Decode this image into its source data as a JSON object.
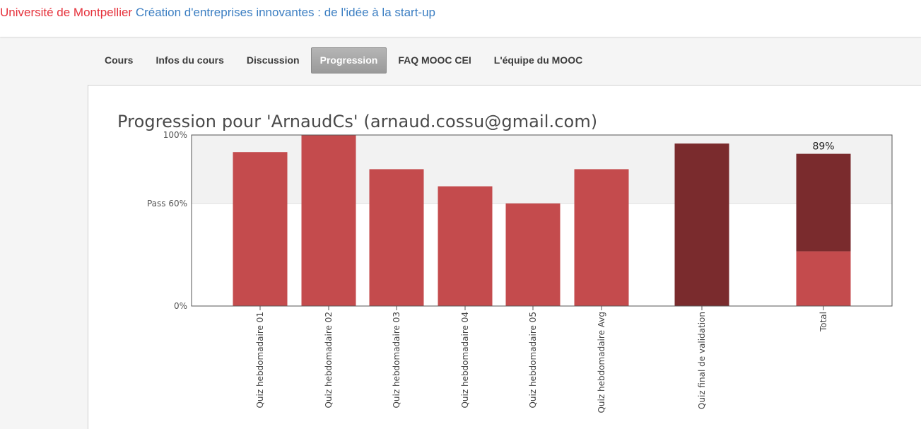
{
  "header": {
    "org": "Université de Montpellier",
    "course": "Création d'entreprises innovantes : de l'idée à la start-up"
  },
  "tabs": [
    {
      "label": "Cours",
      "active": false
    },
    {
      "label": "Infos du cours",
      "active": false
    },
    {
      "label": "Discussion",
      "active": false
    },
    {
      "label": "Progression",
      "active": true
    },
    {
      "label": "FAQ MOOC CEI",
      "active": false
    },
    {
      "label": "L'équipe du MOOC",
      "active": false
    }
  ],
  "progress": {
    "title": "Progression pour 'ArnaudCs' (arnaud.cossu@gmail.com)"
  },
  "colors": {
    "bar": "#c44b4d",
    "bar_dark": "#7a2b2d",
    "pass_region": "#f2f2f2",
    "org": "#e5303a",
    "course": "#3b7ec2"
  },
  "chart_data": {
    "type": "bar",
    "y_ticks": [
      {
        "value": 100,
        "label": "100%"
      },
      {
        "value": 60,
        "label": "Pass 60%"
      },
      {
        "value": 0,
        "label": "0%"
      }
    ],
    "ylim": [
      0,
      100
    ],
    "pass_threshold": 60,
    "categories": [
      "Quiz hebdomadaire 01",
      "Quiz hebdomadaire 02",
      "Quiz hebdomadaire 03",
      "Quiz hebdomadaire 04",
      "Quiz hebdomadaire 05",
      "Quiz hebdomadaire Avg",
      "Quiz final de validation",
      "Total"
    ],
    "values": [
      90,
      100,
      80,
      70,
      60,
      80,
      95,
      89
    ],
    "styles": [
      "normal",
      "normal",
      "normal",
      "normal",
      "normal",
      "normal",
      "dark",
      "stacked"
    ],
    "total_segments": [
      {
        "value": 32,
        "style": "normal"
      },
      {
        "value": 57,
        "style": "dark"
      }
    ],
    "total_label": "89%"
  }
}
